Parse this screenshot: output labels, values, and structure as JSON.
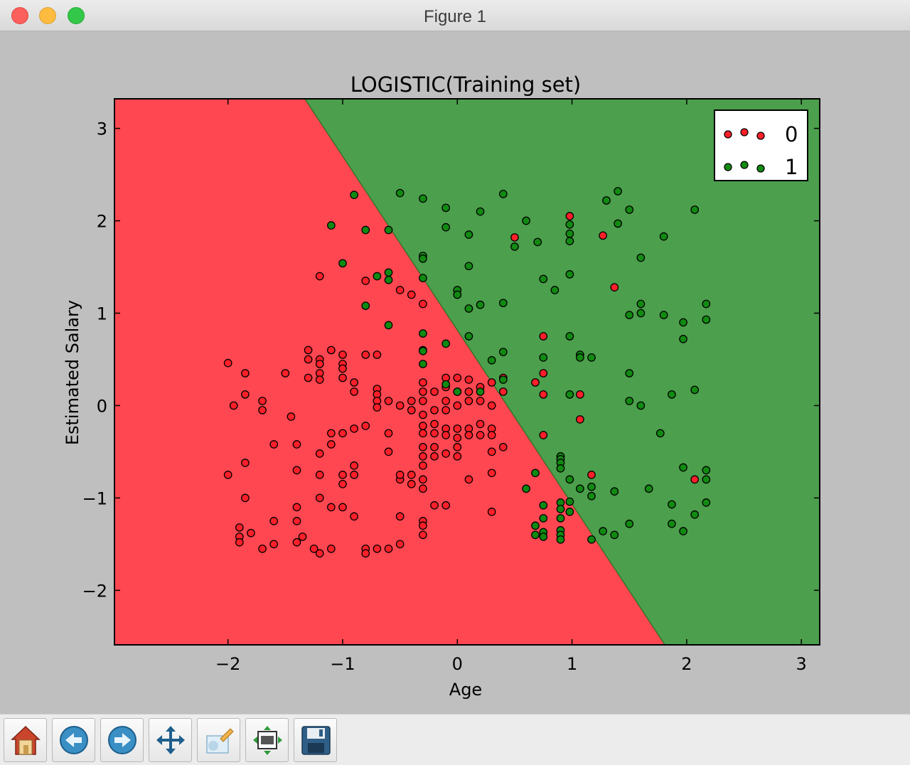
{
  "window": {
    "title": "Figure 1"
  },
  "toolbar": {
    "buttons": [
      {
        "name": "home-button",
        "icon": "home-icon"
      },
      {
        "name": "back-button",
        "icon": "back-arrow-icon"
      },
      {
        "name": "forward-button",
        "icon": "forward-arrow-icon"
      },
      {
        "name": "pan-button",
        "icon": "pan-move-icon"
      },
      {
        "name": "zoom-button",
        "icon": "zoom-rect-icon"
      },
      {
        "name": "subplots-button",
        "icon": "subplots-config-icon"
      },
      {
        "name": "save-button",
        "icon": "save-floppy-icon"
      }
    ]
  },
  "chart_data": {
    "type": "scatter",
    "title": "LOGISTIC(Training set)",
    "xlabel": "Age",
    "ylabel": "Estimated Salary",
    "xlim": [
      -2.99,
      3.16
    ],
    "ylim": [
      -2.59,
      3.32
    ],
    "xticks": [
      -2,
      -1,
      0,
      1,
      2,
      3
    ],
    "xtick_labels": [
      "−2",
      "−1",
      "0",
      "1",
      "2",
      "3"
    ],
    "yticks": [
      -2,
      -1,
      0,
      1,
      2,
      3
    ],
    "ytick_labels": [
      "−2",
      "−1",
      "0",
      "1",
      "2",
      "3"
    ],
    "grid": false,
    "legend": {
      "position": "top-right",
      "entries": [
        "0",
        "1"
      ]
    },
    "colors": {
      "region0": "#ff4751",
      "region1": "#4c9f4c",
      "point0": "#ff1f29",
      "point1": "#118a11"
    },
    "decision_boundary": {
      "points": [
        [
          -1.33,
          3.32
        ],
        [
          1.81,
          -2.59
        ]
      ]
    },
    "series": [
      {
        "name": "0",
        "points": [
          [
            -2.0,
            0.46
          ],
          [
            -1.95,
            0.0
          ],
          [
            -1.85,
            0.35
          ],
          [
            -1.85,
            0.12
          ],
          [
            -1.7,
            0.05
          ],
          [
            -1.7,
            -0.05
          ],
          [
            -1.5,
            0.35
          ],
          [
            -1.45,
            -0.12
          ],
          [
            -1.3,
            0.6
          ],
          [
            -1.3,
            0.5
          ],
          [
            -1.3,
            0.3
          ],
          [
            -1.2,
            0.5
          ],
          [
            -1.2,
            0.45
          ],
          [
            -1.2,
            0.35
          ],
          [
            -1.1,
            0.6
          ],
          [
            -1.0,
            0.55
          ],
          [
            -1.0,
            0.45
          ],
          [
            -1.0,
            0.4
          ],
          [
            -0.8,
            0.55
          ],
          [
            -0.7,
            0.55
          ],
          [
            -1.0,
            0.3
          ],
          [
            -0.9,
            0.25
          ],
          [
            -0.9,
            0.15
          ],
          [
            -1.2,
            0.28
          ],
          [
            -0.7,
            0.18
          ],
          [
            -0.7,
            0.12
          ],
          [
            -0.7,
            0.05
          ],
          [
            -0.7,
            -0.02
          ],
          [
            -0.6,
            0.05
          ],
          [
            -1.2,
            1.4
          ],
          [
            -0.8,
            1.35
          ],
          [
            -0.5,
            1.25
          ],
          [
            -0.4,
            1.2
          ],
          [
            -0.3,
            1.1
          ],
          [
            -0.5,
            0.0
          ],
          [
            -0.4,
            0.05
          ],
          [
            -0.4,
            -0.05
          ],
          [
            -0.3,
            0.25
          ],
          [
            -0.3,
            0.15
          ],
          [
            -0.3,
            0.05
          ],
          [
            -0.3,
            -0.1
          ],
          [
            -0.3,
            -0.22
          ],
          [
            -0.3,
            -0.3
          ],
          [
            -0.3,
            -0.45
          ],
          [
            -0.3,
            -0.55
          ],
          [
            -0.3,
            -0.65
          ],
          [
            -0.2,
            0.15
          ],
          [
            -0.2,
            -0.05
          ],
          [
            -0.2,
            -0.2
          ],
          [
            -0.2,
            -0.3
          ],
          [
            -0.2,
            -0.45
          ],
          [
            -0.2,
            -0.55
          ],
          [
            -0.1,
            0.3
          ],
          [
            -0.1,
            0.2
          ],
          [
            -0.1,
            0.05
          ],
          [
            -0.1,
            -0.05
          ],
          [
            -0.1,
            -0.25
          ],
          [
            -0.1,
            -0.32
          ],
          [
            -0.1,
            -0.52
          ],
          [
            0.0,
            0.3
          ],
          [
            0.0,
            0.15
          ],
          [
            0.0,
            0.0
          ],
          [
            0.0,
            -0.25
          ],
          [
            0.0,
            -0.35
          ],
          [
            0.0,
            -0.45
          ],
          [
            0.0,
            -0.55
          ],
          [
            0.1,
            0.28
          ],
          [
            0.1,
            0.15
          ],
          [
            0.1,
            0.05
          ],
          [
            0.1,
            -0.25
          ],
          [
            0.1,
            -0.32
          ],
          [
            0.2,
            0.2
          ],
          [
            0.2,
            0.05
          ],
          [
            0.2,
            -0.2
          ],
          [
            0.2,
            -0.32
          ],
          [
            0.3,
            0.25
          ],
          [
            0.3,
            0.0
          ],
          [
            0.3,
            -0.25
          ],
          [
            0.3,
            -0.32
          ],
          [
            0.3,
            -0.5
          ],
          [
            0.4,
            0.3
          ],
          [
            0.4,
            0.15
          ],
          [
            0.4,
            -0.45
          ],
          [
            -1.6,
            -0.42
          ],
          [
            -1.4,
            -0.42
          ],
          [
            -1.2,
            -0.52
          ],
          [
            -1.1,
            -0.42
          ],
          [
            -1.1,
            -0.3
          ],
          [
            -1.0,
            -0.3
          ],
          [
            -0.9,
            -0.25
          ],
          [
            -0.8,
            -0.22
          ],
          [
            -0.9,
            -0.65
          ],
          [
            -0.9,
            -0.75
          ],
          [
            -1.0,
            -0.75
          ],
          [
            -1.0,
            -0.85
          ],
          [
            -1.2,
            -0.75
          ],
          [
            -1.2,
            -1.0
          ],
          [
            -1.1,
            -1.1
          ],
          [
            -1.0,
            -1.1
          ],
          [
            -0.9,
            -1.2
          ],
          [
            -1.4,
            -0.7
          ],
          [
            -1.4,
            -1.1
          ],
          [
            -1.4,
            -1.25
          ],
          [
            -1.35,
            -1.42
          ],
          [
            -1.25,
            -1.55
          ],
          [
            -1.1,
            -1.55
          ],
          [
            -1.2,
            -1.6
          ],
          [
            -1.4,
            -1.48
          ],
          [
            -1.6,
            -1.25
          ],
          [
            -1.6,
            -1.5
          ],
          [
            -1.7,
            -1.55
          ],
          [
            -1.8,
            -1.38
          ],
          [
            -1.85,
            -1.0
          ],
          [
            -1.9,
            -1.32
          ],
          [
            -1.9,
            -1.42
          ],
          [
            -1.9,
            -1.48
          ],
          [
            -1.85,
            -0.62
          ],
          [
            -2.0,
            -0.75
          ],
          [
            -0.8,
            -1.55
          ],
          [
            -0.8,
            -1.6
          ],
          [
            -0.7,
            -1.55
          ],
          [
            -0.6,
            -1.55
          ],
          [
            -0.5,
            -1.5
          ],
          [
            -0.5,
            -1.2
          ],
          [
            -0.5,
            -0.8
          ],
          [
            -0.6,
            -0.3
          ],
          [
            -0.6,
            -0.5
          ],
          [
            -0.5,
            -0.75
          ],
          [
            -0.4,
            -0.75
          ],
          [
            -0.4,
            -0.85
          ],
          [
            -0.3,
            -0.8
          ],
          [
            -0.3,
            -0.9
          ],
          [
            -0.2,
            -1.08
          ],
          [
            -0.1,
            -1.08
          ],
          [
            -0.3,
            -1.25
          ],
          [
            -0.3,
            -1.3
          ],
          [
            -0.3,
            -1.4
          ],
          [
            0.1,
            -0.8
          ],
          [
            0.3,
            -0.73
          ],
          [
            0.3,
            -1.15
          ],
          [
            0.5,
            1.82
          ],
          [
            0.75,
            0.75
          ],
          [
            0.75,
            0.35
          ],
          [
            0.75,
            0.12
          ],
          [
            0.75,
            -0.32
          ],
          [
            0.68,
            0.25
          ],
          [
            0.98,
            2.05
          ],
          [
            1.07,
            0.12
          ],
          [
            1.07,
            -0.15
          ],
          [
            1.27,
            1.84
          ],
          [
            1.37,
            1.28
          ],
          [
            1.17,
            -0.75
          ],
          [
            2.07,
            -0.8
          ]
        ]
      },
      {
        "name": "1",
        "points": [
          [
            -1.1,
            1.95
          ],
          [
            -0.9,
            2.28
          ],
          [
            -0.8,
            1.9
          ],
          [
            -0.6,
            1.9
          ],
          [
            -0.5,
            2.3
          ],
          [
            -0.3,
            2.24
          ],
          [
            -0.1,
            2.14
          ],
          [
            -0.1,
            1.93
          ],
          [
            0.1,
            1.85
          ],
          [
            0.2,
            2.1
          ],
          [
            -1.0,
            1.54
          ],
          [
            -0.7,
            1.4
          ],
          [
            -0.6,
            1.44
          ],
          [
            -0.6,
            1.36
          ],
          [
            -0.8,
            1.08
          ],
          [
            -0.6,
            0.87
          ],
          [
            -0.3,
            1.62
          ],
          [
            -0.3,
            1.59
          ],
          [
            -0.3,
            1.38
          ],
          [
            0.1,
            1.51
          ],
          [
            0.4,
            2.29
          ],
          [
            0.6,
            2.0
          ],
          [
            0.7,
            1.77
          ],
          [
            0.5,
            1.72
          ],
          [
            0.98,
            1.96
          ],
          [
            0.98,
            1.86
          ],
          [
            0.98,
            1.78
          ],
          [
            0.98,
            1.42
          ],
          [
            0.75,
            1.37
          ],
          [
            0.85,
            1.25
          ],
          [
            1.3,
            2.22
          ],
          [
            1.4,
            2.32
          ],
          [
            1.5,
            2.12
          ],
          [
            1.4,
            1.97
          ],
          [
            1.6,
            1.6
          ],
          [
            1.8,
            1.83
          ],
          [
            2.07,
            2.12
          ],
          [
            0.4,
            1.11
          ],
          [
            0.2,
            1.09
          ],
          [
            0.1,
            1.05
          ],
          [
            0.0,
            1.25
          ],
          [
            0.0,
            1.2
          ],
          [
            0.1,
            0.75
          ],
          [
            -0.1,
            0.67
          ],
          [
            -0.3,
            0.78
          ],
          [
            -0.3,
            0.6
          ],
          [
            -0.3,
            0.59
          ],
          [
            -0.3,
            0.45
          ],
          [
            0.3,
            0.49
          ],
          [
            0.4,
            0.58
          ],
          [
            0.4,
            0.28
          ],
          [
            0.2,
            0.15
          ],
          [
            0.0,
            0.15
          ],
          [
            -0.1,
            0.23
          ],
          [
            0.75,
            0.52
          ],
          [
            0.98,
            0.75
          ],
          [
            1.07,
            0.55
          ],
          [
            1.07,
            0.52
          ],
          [
            1.17,
            0.52
          ],
          [
            1.5,
            0.35
          ],
          [
            1.5,
            0.05
          ],
          [
            1.6,
            0.0
          ],
          [
            1.5,
            0.98
          ],
          [
            1.6,
            1.0
          ],
          [
            1.6,
            1.1
          ],
          [
            1.8,
            0.98
          ],
          [
            1.97,
            0.9
          ],
          [
            1.97,
            0.72
          ],
          [
            2.17,
            1.1
          ],
          [
            2.17,
            0.93
          ],
          [
            2.07,
            0.17
          ],
          [
            1.87,
            0.12
          ],
          [
            0.98,
            0.12
          ],
          [
            1.77,
            -0.3
          ],
          [
            0.9,
            -0.55
          ],
          [
            0.9,
            -0.58
          ],
          [
            0.9,
            -0.62
          ],
          [
            0.9,
            -0.68
          ],
          [
            0.68,
            -0.73
          ],
          [
            0.98,
            -0.8
          ],
          [
            1.17,
            -0.88
          ],
          [
            1.07,
            -0.9
          ],
          [
            1.37,
            -0.93
          ],
          [
            1.17,
            -0.98
          ],
          [
            0.6,
            -0.9
          ],
          [
            0.75,
            -1.08
          ],
          [
            0.9,
            -1.05
          ],
          [
            0.9,
            -1.12
          ],
          [
            0.98,
            -1.04
          ],
          [
            0.98,
            -1.15
          ],
          [
            0.9,
            -1.22
          ],
          [
            0.75,
            -1.22
          ],
          [
            0.68,
            -1.3
          ],
          [
            0.68,
            -1.4
          ],
          [
            0.75,
            -1.37
          ],
          [
            0.75,
            -1.42
          ],
          [
            0.9,
            -1.35
          ],
          [
            0.9,
            -1.4
          ],
          [
            0.9,
            -1.45
          ],
          [
            1.17,
            -1.45
          ],
          [
            1.27,
            -1.36
          ],
          [
            1.37,
            -1.4
          ],
          [
            1.5,
            -1.28
          ],
          [
            1.67,
            -0.9
          ],
          [
            1.87,
            -1.07
          ],
          [
            1.87,
            -1.28
          ],
          [
            1.97,
            -0.67
          ],
          [
            1.97,
            -1.36
          ],
          [
            2.07,
            -1.18
          ],
          [
            2.17,
            -1.05
          ],
          [
            2.17,
            -0.8
          ],
          [
            2.17,
            -0.7
          ]
        ]
      }
    ]
  }
}
